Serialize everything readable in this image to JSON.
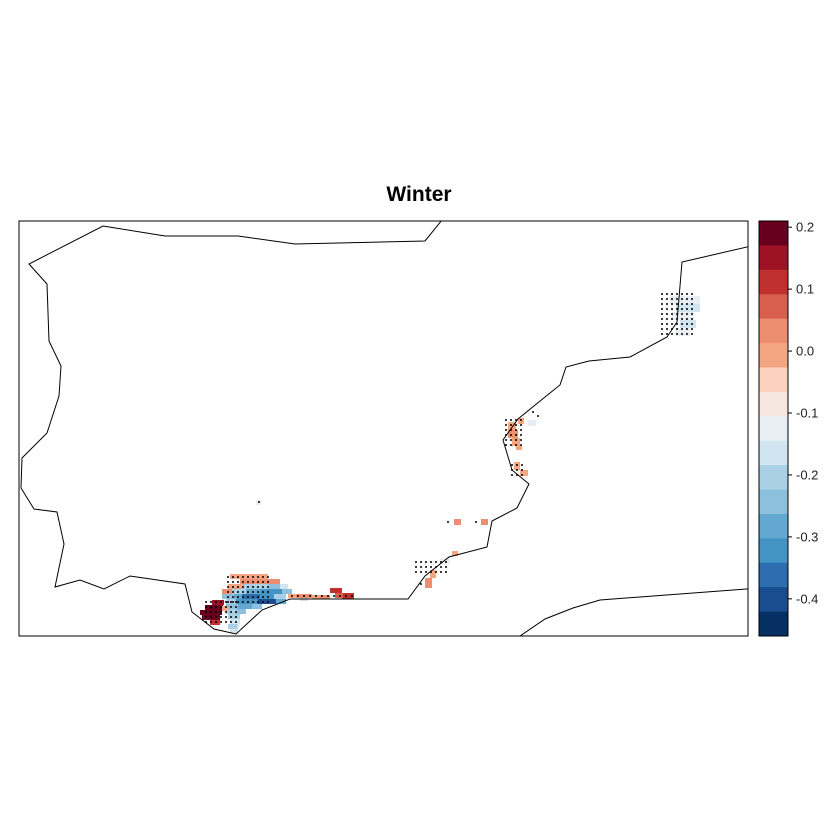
{
  "title": "Winter",
  "legend": {
    "tick_labels": [
      "0.2",
      "0.1",
      "0.0",
      "-0.1",
      "-0.2",
      "-0.3",
      "-0.4"
    ],
    "tick_values": [
      0.2,
      0.1,
      0.0,
      -0.1,
      -0.2,
      -0.3,
      -0.4
    ],
    "range": [
      -0.46,
      0.21
    ],
    "colors_top_to_bottom": [
      "#67001f",
      "#9e1226",
      "#c0302f",
      "#d6604d",
      "#ec8e6f",
      "#f4a582",
      "#fbd2bd",
      "#f5e6e0",
      "#e8eef4",
      "#d1e5f0",
      "#a9d0e5",
      "#8dc0dd",
      "#62a8d0",
      "#4393c3",
      "#2c6eb0",
      "#1a4d8f",
      "#053061"
    ]
  },
  "map": {
    "type": "gridded field with significance stippling",
    "region": "southern Iberian Peninsula (Andalusia)",
    "markers": "black dots mark statistically significant cells"
  }
}
